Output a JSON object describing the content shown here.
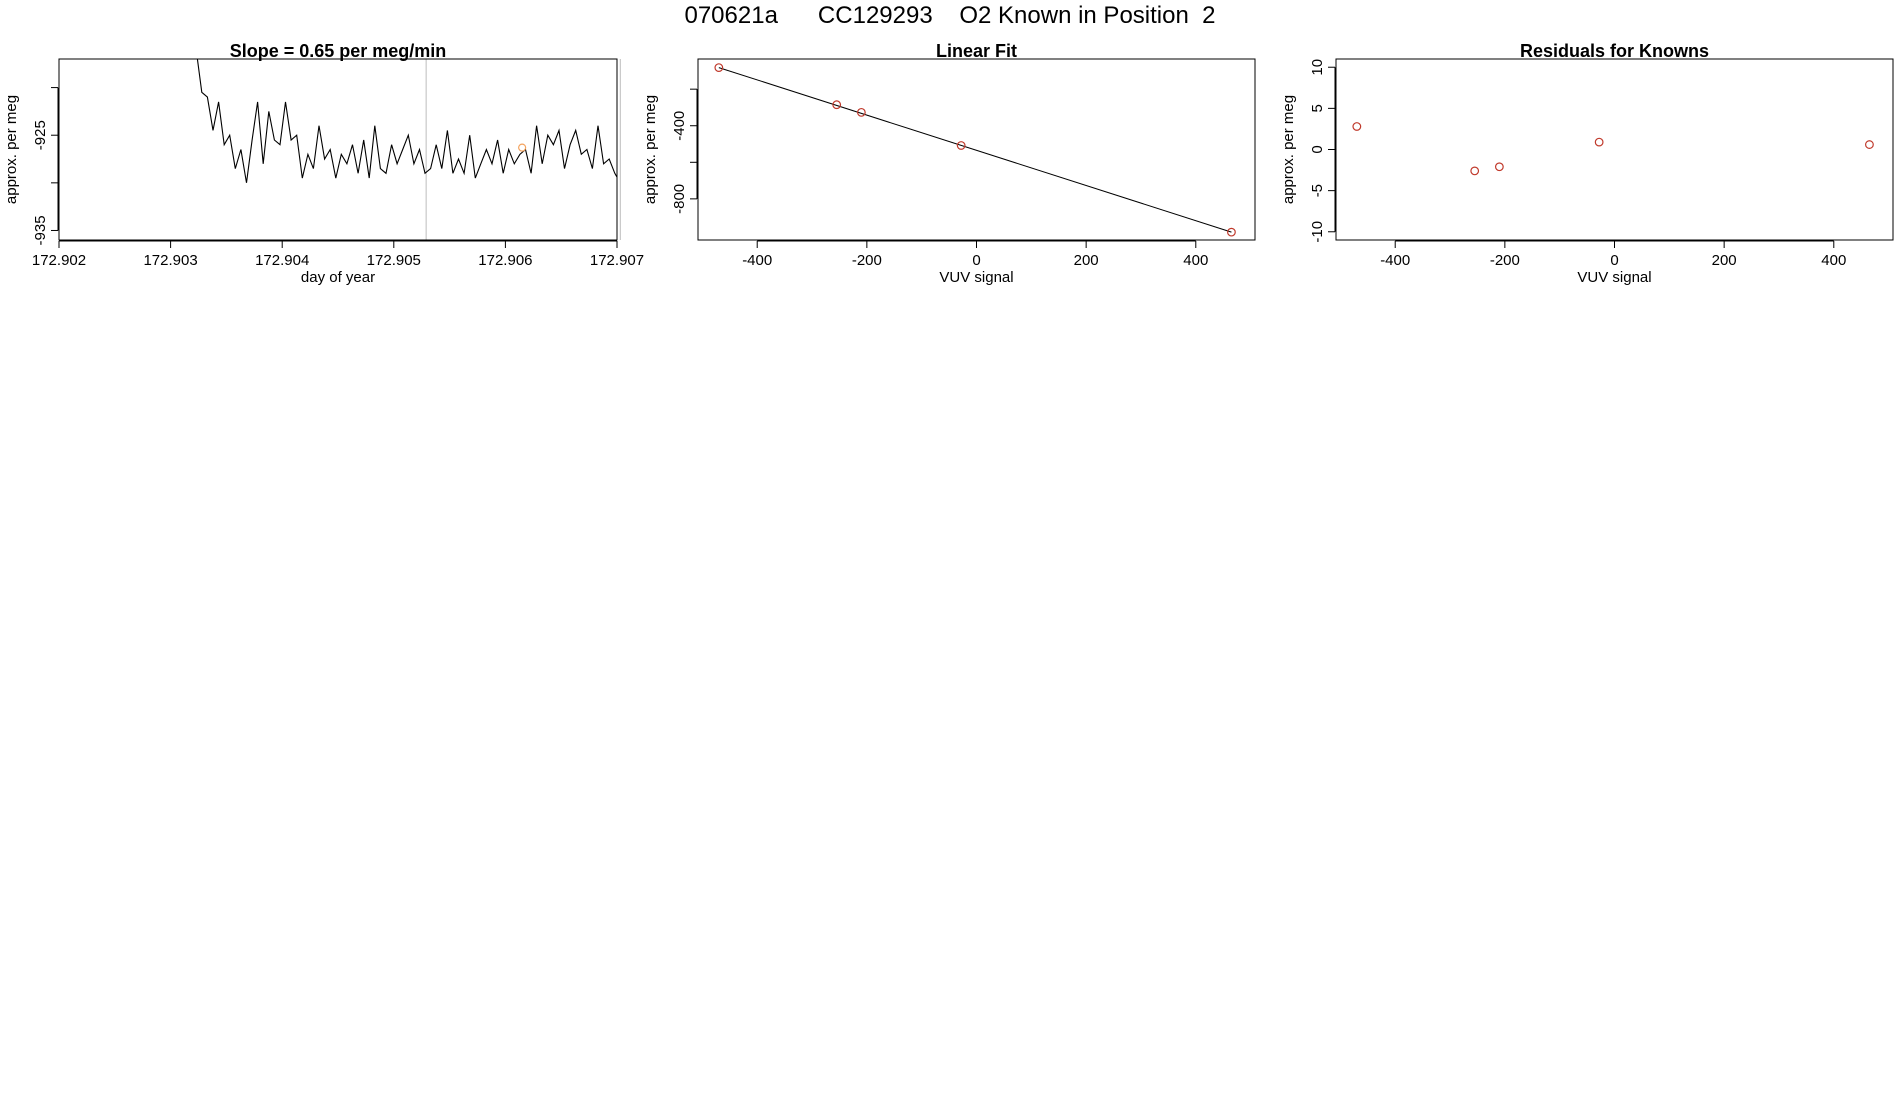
{
  "figure": {
    "title": "070621a      CC129293    O2 Known in Position  2"
  },
  "colors": {
    "line": "#000000",
    "point": "#c0392b",
    "highlight": "#f4a460",
    "vline": "#c8c8c8"
  },
  "chart_data": [
    {
      "type": "line",
      "title": "Slope =  0.65  per meg/min",
      "xlabel": "day of year",
      "ylabel": "approx. per meg",
      "xlim": [
        172.902,
        172.907
      ],
      "ylim": [
        -936,
        -917
      ],
      "xticks": [
        172.902,
        172.903,
        172.904,
        172.905,
        172.906,
        172.907
      ],
      "xtick_labels": [
        "172.902",
        "172.903",
        "172.904",
        "172.905",
        "172.906",
        "172.907"
      ],
      "yticks": [
        -935,
        -930,
        -925,
        -920
      ],
      "ytick_labels": [
        "-935",
        "",
        "-925",
        ""
      ],
      "vertical_lines": [
        172.90529,
        172.90703
      ],
      "highlight_point": {
        "x": 172.90615,
        "y": -926.3
      },
      "series": [
        {
          "x": [
            172.90324,
            172.90328,
            172.90333,
            172.90338,
            172.90343,
            172.90348,
            172.90353,
            172.90358,
            172.90363,
            172.90368,
            172.90373,
            172.90378,
            172.90383,
            172.90388,
            172.90393,
            172.90398,
            172.90403,
            172.90408,
            172.90413,
            172.90418,
            172.90423,
            172.90428,
            172.90433,
            172.90438,
            172.90443,
            172.90448,
            172.90453,
            172.90458,
            172.90463,
            172.90468,
            172.90473,
            172.90478,
            172.90483,
            172.90488,
            172.90493,
            172.90498,
            172.90503,
            172.90508,
            172.90513,
            172.90518,
            172.90523,
            172.90528,
            172.90533,
            172.90538,
            172.90543,
            172.90548,
            172.90553,
            172.90558,
            172.90563,
            172.90568,
            172.90573,
            172.90578,
            172.90583,
            172.90588,
            172.90593,
            172.90598,
            172.90603,
            172.90608,
            172.90613,
            172.90618,
            172.90623,
            172.90628,
            172.90633,
            172.90638,
            172.90643,
            172.90648,
            172.90653,
            172.90658,
            172.90663,
            172.90668,
            172.90673,
            172.90678,
            172.90683,
            172.90688,
            172.90693,
            172.90698,
            172.90703
          ],
          "y": [
            -917.0,
            -920.5,
            -921.0,
            -924.5,
            -921.5,
            -926.0,
            -925.0,
            -928.5,
            -926.5,
            -930.0,
            -925.5,
            -921.5,
            -928.0,
            -922.5,
            -925.5,
            -926.0,
            -921.5,
            -925.5,
            -925.0,
            -929.5,
            -927.0,
            -928.5,
            -924.0,
            -927.5,
            -926.5,
            -929.5,
            -927.0,
            -928.0,
            -926.0,
            -929.0,
            -925.5,
            -929.5,
            -924.0,
            -928.5,
            -929.0,
            -926.0,
            -928.0,
            -926.5,
            -925.0,
            -928.0,
            -926.5,
            -929.0,
            -928.5,
            -926.0,
            -928.5,
            -924.5,
            -929.0,
            -927.5,
            -929.0,
            -925.0,
            -929.5,
            -928.0,
            -926.5,
            -928.0,
            -925.5,
            -929.0,
            -926.5,
            -928.0,
            -927.0,
            -926.5,
            -929.0,
            -924.0,
            -928.0,
            -925.0,
            -926.0,
            -924.5,
            -928.5,
            -926.0,
            -924.5,
            -927.0,
            -926.5,
            -928.5,
            -924.0,
            -928.0,
            -927.5,
            -929.0,
            -930.0
          ]
        }
      ]
    },
    {
      "type": "scatter",
      "title": "Linear Fit",
      "xlabel": "VUV signal",
      "ylabel": "approx. per meg",
      "xlim": [
        -508,
        508
      ],
      "ylim": [
        -1025,
        -35
      ],
      "xticks": [
        -400,
        -200,
        0,
        200,
        400
      ],
      "xtick_labels": [
        "-400",
        "-200",
        "0",
        "200",
        "400"
      ],
      "yticks": [
        -800,
        -600,
        -400,
        -200
      ],
      "ytick_labels": [
        "-800",
        "",
        "-400",
        ""
      ],
      "points": {
        "x": [
          -470,
          -255,
          -210,
          -28,
          465
        ],
        "y": [
          -82,
          -285,
          -327,
          -508,
          -982
        ]
      },
      "fit_line": {
        "x": [
          -470,
          465
        ],
        "y": [
          -82,
          -982
        ]
      }
    },
    {
      "type": "scatter",
      "title": "Residuals for Knowns",
      "xlabel": "VUV signal",
      "ylabel": "approx. per meg",
      "xlim": [
        -508,
        508
      ],
      "ylim": [
        -11,
        11
      ],
      "xticks": [
        -400,
        -200,
        0,
        200,
        400
      ],
      "xtick_labels": [
        "-400",
        "-200",
        "0",
        "200",
        "400"
      ],
      "yticks": [
        -10,
        -5,
        0,
        5,
        10
      ],
      "ytick_labels": [
        "-10",
        "-5",
        "0",
        "5",
        "10"
      ],
      "points": {
        "x": [
          -470,
          -255,
          -210,
          -28,
          465
        ],
        "y": [
          2.8,
          -2.6,
          -2.1,
          0.9,
          0.6
        ]
      }
    }
  ]
}
